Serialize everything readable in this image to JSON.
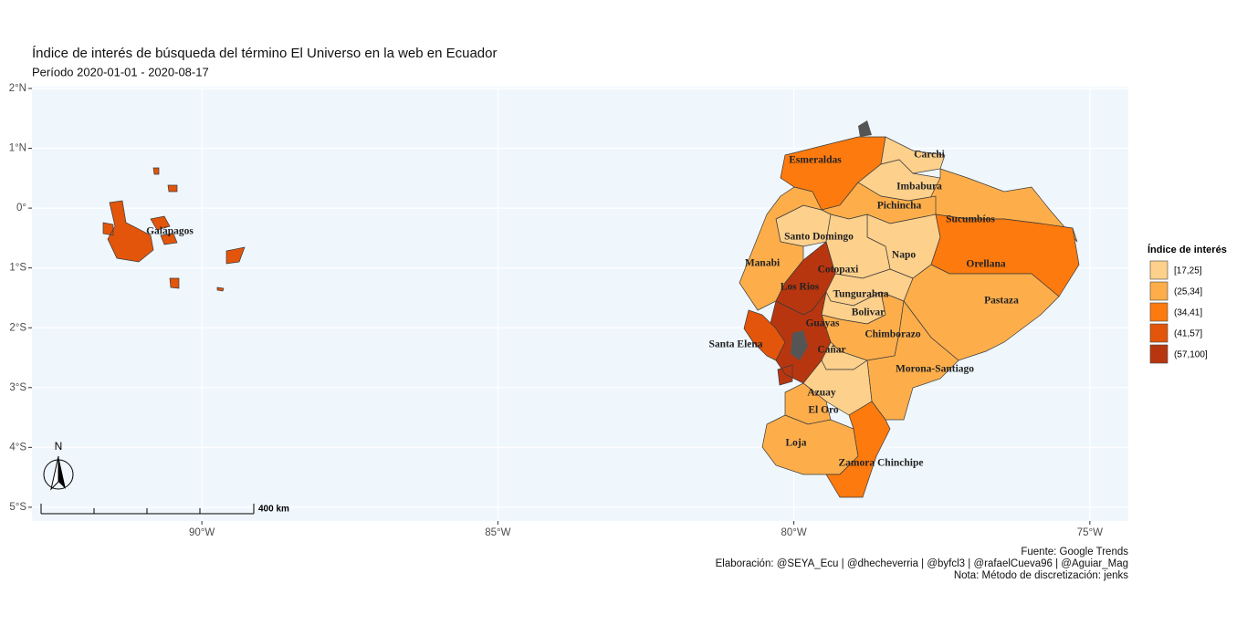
{
  "chart_data": {
    "type": "choropleth",
    "title": "Índice de interés de búsqueda del término El Universo en la web en Ecuador",
    "subtitle": "Período 2020-01-01 - 2020-08-17",
    "xlim": [
      -92.87,
      -74.35
    ],
    "ylim": [
      -5.23,
      2.03
    ],
    "xticks": [
      {
        "value": -90,
        "label": "90°W"
      },
      {
        "value": -85,
        "label": "85°W"
      },
      {
        "value": -80,
        "label": "80°W"
      },
      {
        "value": -75,
        "label": "75°W"
      }
    ],
    "yticks": [
      {
        "value": 2,
        "label": "2°N"
      },
      {
        "value": 1,
        "label": "1°N"
      },
      {
        "value": 0,
        "label": "0°"
      },
      {
        "value": -1,
        "label": "1°S"
      },
      {
        "value": -2,
        "label": "2°S"
      },
      {
        "value": -3,
        "label": "3°S"
      },
      {
        "value": -4,
        "label": "4°S"
      },
      {
        "value": -5,
        "label": "5°S"
      }
    ],
    "grid": true,
    "legend_title": "Índice de interés",
    "legend": [
      {
        "label": "[17,25]",
        "color": "#fdd08c"
      },
      {
        "label": "(25,34]",
        "color": "#fdae4b"
      },
      {
        "label": "(34,41]",
        "color": "#fd7a0e"
      },
      {
        "label": "(41,57]",
        "color": "#e2550b"
      },
      {
        "label": "(57,100]",
        "color": "#b8360f"
      }
    ],
    "regions": [
      {
        "name": "Galápagos",
        "class": "(41,57]"
      },
      {
        "name": "Esmeraldas",
        "class": "(34,41]"
      },
      {
        "name": "Carchi",
        "class": "[17,25]"
      },
      {
        "name": "Imbabura",
        "class": "[17,25]"
      },
      {
        "name": "Sucumbíos",
        "class": "(25,34]"
      },
      {
        "name": "Pichincha",
        "class": "(25,34]"
      },
      {
        "name": "Santo Domingo",
        "class": "[17,25]"
      },
      {
        "name": "Manabi",
        "class": "(25,34]"
      },
      {
        "name": "Napo",
        "class": "[17,25]"
      },
      {
        "name": "Cotopaxi",
        "class": "[17,25]"
      },
      {
        "name": "Orellana",
        "class": "(34,41]"
      },
      {
        "name": "Pastaza",
        "class": "(25,34]"
      },
      {
        "name": "Los Rios",
        "class": "(57,100]"
      },
      {
        "name": "Tungurahua",
        "class": "[17,25]"
      },
      {
        "name": "Bolivar",
        "class": "[17,25]"
      },
      {
        "name": "Chimborazo",
        "class": "(25,34]"
      },
      {
        "name": "Guayas",
        "class": "(57,100]"
      },
      {
        "name": "Santa Elena",
        "class": "(41,57]"
      },
      {
        "name": "Cañar",
        "class": "[17,25]"
      },
      {
        "name": "Morona-Santiago",
        "class": "(25,34]"
      },
      {
        "name": "Azuay",
        "class": "[17,25]"
      },
      {
        "name": "El Oro",
        "class": "(25,34]"
      },
      {
        "name": "Loja",
        "class": "(25,34]"
      },
      {
        "name": "Zamora Chinchipe",
        "class": "(34,41]"
      }
    ],
    "caption": [
      "Fuente: Google Trends",
      "Elaboración:  @SEYA_Ecu | @dhecheverria | @byfcl3 | @rafaelCueva96 | @Aguiar_Mag",
      "Nota: Método de discretización: jenks"
    ],
    "scale_label": "400 km",
    "north_label": "N"
  }
}
